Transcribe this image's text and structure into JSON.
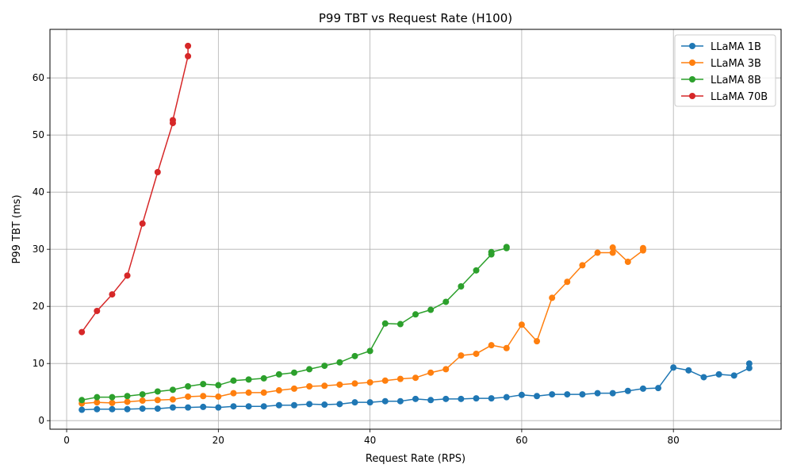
{
  "chart_data": {
    "type": "line",
    "title": "P99 TBT vs Request Rate (H100)",
    "xlabel": "Request Rate (RPS)",
    "ylabel": "P99 TBT (ms)",
    "xlim": [
      -2.2,
      94.2
    ],
    "ylim": [
      -1.5,
      68.5
    ],
    "xticks": [
      0,
      20,
      40,
      60,
      80
    ],
    "yticks": [
      0,
      10,
      20,
      30,
      40,
      50,
      60
    ],
    "grid": true,
    "legend_position": "top-right",
    "series": [
      {
        "name": "LLaMA 1B",
        "color": "#1f77b4",
        "x": [
          2,
          4,
          6,
          8,
          10,
          12,
          14,
          16,
          18,
          20,
          22,
          24,
          26,
          28,
          30,
          32,
          34,
          36,
          38,
          40,
          42,
          44,
          46,
          48,
          50,
          52,
          54,
          56,
          58,
          60,
          62,
          64,
          66,
          68,
          70,
          72,
          74,
          76,
          78,
          80,
          82,
          84,
          86,
          88,
          90,
          90
        ],
        "y": [
          1.9,
          2.0,
          2.0,
          2.0,
          2.1,
          2.1,
          2.3,
          2.3,
          2.4,
          2.3,
          2.5,
          2.5,
          2.5,
          2.7,
          2.7,
          2.9,
          2.8,
          2.9,
          3.2,
          3.2,
          3.4,
          3.4,
          3.8,
          3.6,
          3.8,
          3.8,
          3.9,
          3.9,
          4.1,
          4.5,
          4.3,
          4.6,
          4.6,
          4.6,
          4.8,
          4.8,
          5.2,
          5.6,
          5.7,
          9.3,
          8.8,
          7.6,
          8.1,
          7.9,
          9.2,
          10.0
        ]
      },
      {
        "name": "LLaMA 3B",
        "color": "#ff7f0e",
        "x": [
          2,
          4,
          6,
          8,
          10,
          12,
          14,
          16,
          18,
          20,
          22,
          24,
          26,
          28,
          30,
          32,
          34,
          36,
          38,
          40,
          42,
          44,
          46,
          48,
          50,
          52,
          54,
          56,
          58,
          60,
          62,
          64,
          66,
          68,
          70,
          72,
          72,
          74,
          76,
          76
        ],
        "y": [
          3.0,
          3.2,
          3.1,
          3.3,
          3.5,
          3.6,
          3.7,
          4.2,
          4.3,
          4.2,
          4.8,
          4.9,
          4.9,
          5.3,
          5.6,
          6.0,
          6.1,
          6.3,
          6.5,
          6.7,
          7.0,
          7.3,
          7.5,
          8.4,
          9.0,
          11.4,
          11.7,
          13.2,
          12.7,
          16.8,
          13.9,
          21.5,
          24.3,
          27.2,
          29.4,
          29.4,
          30.3,
          27.8,
          29.8,
          30.2
        ]
      },
      {
        "name": "LLaMA 8B",
        "color": "#2ca02c",
        "x": [
          2,
          4,
          6,
          8,
          10,
          12,
          14,
          16,
          18,
          20,
          22,
          24,
          26,
          28,
          30,
          32,
          34,
          36,
          38,
          40,
          42,
          44,
          46,
          48,
          50,
          52,
          54,
          56,
          56,
          58,
          58
        ],
        "y": [
          3.6,
          4.1,
          4.1,
          4.3,
          4.6,
          5.1,
          5.4,
          6.0,
          6.4,
          6.2,
          7.0,
          7.2,
          7.4,
          8.1,
          8.4,
          9.0,
          9.6,
          10.2,
          11.3,
          12.2,
          17.0,
          16.9,
          18.6,
          19.4,
          20.8,
          23.5,
          26.3,
          29.1,
          29.5,
          30.2,
          30.4
        ]
      },
      {
        "name": "LLaMA 70B",
        "color": "#d62728",
        "x": [
          2,
          4,
          6,
          8,
          10,
          12,
          14,
          14,
          16,
          16
        ],
        "y": [
          15.5,
          19.2,
          22.1,
          25.4,
          34.5,
          43.5,
          52.1,
          52.6,
          63.8,
          65.6
        ]
      }
    ]
  }
}
